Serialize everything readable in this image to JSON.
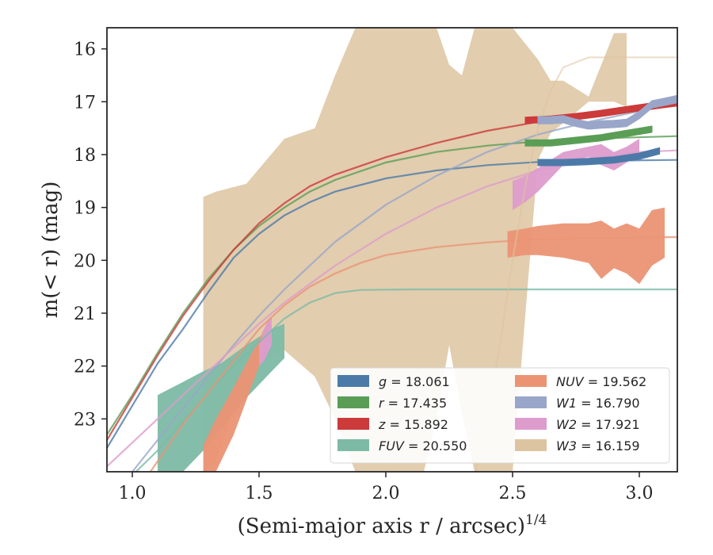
{
  "chart_data": {
    "type": "line",
    "xlabel": "(Semi-major axis r / arcsec)^{1/4}",
    "ylabel": "m(< r) (mag)",
    "xlim": [
      0.9,
      3.15
    ],
    "ylim": [
      24.0,
      15.6
    ],
    "y_inverted": true,
    "grid": false,
    "legend_position": "lower-right",
    "x_ticks": [
      "1.0",
      "1.5",
      "2.0",
      "2.5",
      "3.0"
    ],
    "y_ticks": [
      "16",
      "17",
      "18",
      "19",
      "20",
      "21",
      "22",
      "23"
    ],
    "series": [
      {
        "name": "g = 18.061",
        "band": "g",
        "total_mag": "18.061",
        "color": "#4c7aa8",
        "profile_x": [
          2.6,
          2.7,
          2.8,
          2.9,
          3.0,
          3.08
        ],
        "profile_y": [
          18.15,
          18.15,
          18.13,
          18.1,
          18.03,
          17.93
        ],
        "profile_halfwidth": 0.06,
        "model_x": [
          0.9,
          1.0,
          1.1,
          1.2,
          1.3,
          1.4,
          1.5,
          1.6,
          1.7,
          1.8,
          2.0,
          2.2,
          2.4,
          2.6,
          2.8,
          3.15
        ],
        "model_y": [
          23.55,
          22.75,
          21.95,
          21.3,
          20.6,
          19.95,
          19.5,
          19.15,
          18.9,
          18.7,
          18.45,
          18.3,
          18.2,
          18.14,
          18.12,
          18.1
        ]
      },
      {
        "name": "r = 17.435",
        "band": "r",
        "total_mag": "17.435",
        "color": "#5a9e56",
        "profile_x": [
          2.55,
          2.65,
          2.75,
          2.85,
          2.95,
          3.05
        ],
        "profile_y": [
          17.78,
          17.78,
          17.73,
          17.68,
          17.6,
          17.52
        ],
        "profile_halfwidth": 0.06,
        "model_x": [
          0.9,
          1.0,
          1.1,
          1.2,
          1.3,
          1.4,
          1.5,
          1.6,
          1.7,
          1.8,
          2.0,
          2.2,
          2.4,
          2.6,
          2.8,
          3.15
        ],
        "model_y": [
          23.3,
          22.55,
          21.75,
          21.0,
          20.35,
          19.8,
          19.35,
          19.0,
          18.7,
          18.48,
          18.15,
          17.95,
          17.83,
          17.75,
          17.7,
          17.65
        ]
      },
      {
        "name": "z = 15.892",
        "band": "z",
        "total_mag": "15.892",
        "color": "#cc3a3a",
        "profile_x": [
          2.55,
          2.65,
          2.75,
          2.85,
          2.95,
          3.05,
          3.15
        ],
        "profile_y": [
          17.35,
          17.33,
          17.28,
          17.22,
          17.15,
          17.08,
          17.02
        ],
        "profile_halfwidth": 0.06,
        "model_x": [
          0.9,
          1.0,
          1.1,
          1.2,
          1.3,
          1.4,
          1.5,
          1.6,
          1.7,
          1.8,
          2.0,
          2.2,
          2.4,
          2.6,
          2.8,
          3.15
        ],
        "model_y": [
          23.4,
          22.6,
          21.8,
          21.05,
          20.4,
          19.8,
          19.3,
          18.92,
          18.6,
          18.38,
          18.05,
          17.78,
          17.55,
          17.38,
          17.25,
          17.05
        ]
      },
      {
        "name": "FUV = 20.550",
        "band": "FUV",
        "total_mag": "20.550",
        "color": "#7dbaa6",
        "band_x": [
          1.1,
          1.2,
          1.28,
          1.35,
          1.45,
          1.55,
          1.6
        ],
        "band_upper": [
          22.55,
          22.3,
          22.1,
          21.95,
          21.6,
          21.3,
          21.2
        ],
        "band_lower": [
          24.0,
          24.0,
          23.6,
          23.2,
          22.6,
          22.1,
          21.85
        ],
        "model_x": [
          0.95,
          1.1,
          1.2,
          1.3,
          1.4,
          1.5,
          1.6,
          1.7,
          1.8,
          1.9,
          2.1,
          3.15
        ],
        "model_y": [
          24.3,
          23.6,
          23.05,
          22.5,
          22.0,
          21.55,
          21.1,
          20.8,
          20.62,
          20.56,
          20.55,
          20.55
        ]
      },
      {
        "name": "NUV = 19.562",
        "band": "NUV",
        "total_mag": "19.562",
        "color": "#eb9474",
        "band_x": [
          1.28,
          1.33,
          1.4,
          1.5,
          1.54
        ],
        "band_upper": [
          23.5,
          23.0,
          22.4,
          21.5,
          21.1
        ],
        "band_lower": [
          24.0,
          24.0,
          23.3,
          22.0,
          21.3
        ],
        "band2_x": [
          2.48,
          2.55,
          2.6,
          2.7,
          2.8,
          2.85,
          2.9,
          2.95,
          3.0,
          3.05,
          3.1
        ],
        "band2_upper": [
          19.45,
          19.4,
          19.35,
          19.3,
          19.3,
          19.25,
          19.4,
          19.3,
          19.4,
          19.05,
          19.0
        ],
        "band2_lower": [
          19.95,
          19.9,
          19.9,
          19.95,
          20.05,
          20.35,
          20.15,
          20.25,
          20.45,
          20.1,
          19.95
        ],
        "model_x": [
          1.0,
          1.1,
          1.2,
          1.3,
          1.4,
          1.5,
          1.6,
          1.7,
          1.8,
          1.9,
          2.0,
          2.2,
          2.4,
          2.6,
          2.8,
          3.15
        ],
        "model_y": [
          24.5,
          23.8,
          23.1,
          22.5,
          21.9,
          21.3,
          20.85,
          20.5,
          20.25,
          20.05,
          19.9,
          19.75,
          19.66,
          19.6,
          19.58,
          19.56
        ]
      },
      {
        "name": "W1 = 16.790",
        "band": "W1",
        "total_mag": "16.790",
        "color": "#99a6c9",
        "profile_x": [
          2.6,
          2.65,
          2.7,
          2.75,
          2.8,
          2.85,
          2.9,
          2.95,
          3.0,
          3.05,
          3.1,
          3.15
        ],
        "profile_y": [
          17.35,
          17.35,
          17.33,
          17.4,
          17.45,
          17.43,
          17.42,
          17.4,
          17.25,
          17.05,
          17.0,
          16.95
        ],
        "profile_halfwidth": 0.07,
        "model_x": [
          1.0,
          1.1,
          1.2,
          1.3,
          1.4,
          1.5,
          1.6,
          1.7,
          1.8,
          1.9,
          2.0,
          2.2,
          2.4,
          2.6,
          2.8,
          3.0,
          3.15
        ],
        "model_y": [
          24.0,
          23.4,
          22.8,
          22.2,
          21.6,
          21.05,
          20.55,
          20.1,
          19.65,
          19.3,
          18.95,
          18.4,
          17.95,
          17.62,
          17.38,
          17.18,
          17.05
        ]
      },
      {
        "name": "W2 = 17.921",
        "band": "W2",
        "total_mag": "17.921",
        "color": "#dd9ccc",
        "band_x": [
          1.5,
          1.52,
          1.54,
          1.55
        ],
        "band_upper": [
          21.6,
          21.3,
          21.1,
          21.1
        ],
        "band_lower": [
          22.0,
          21.9,
          21.7,
          21.6
        ],
        "band2_x": [
          2.5,
          2.55,
          2.6,
          2.65,
          2.7,
          2.75,
          2.8,
          2.85,
          2.9,
          2.95,
          3.0
        ],
        "band2_upper": [
          18.5,
          18.4,
          18.25,
          18.1,
          17.95,
          17.9,
          17.85,
          17.8,
          17.95,
          17.85,
          17.7
        ],
        "band2_lower": [
          19.05,
          18.9,
          18.7,
          18.45,
          18.2,
          18.1,
          18.05,
          18.2,
          18.3,
          18.15,
          18.0
        ],
        "model_x": [
          0.9,
          1.0,
          1.1,
          1.2,
          1.3,
          1.4,
          1.5,
          1.6,
          1.7,
          1.8,
          1.9,
          2.0,
          2.2,
          2.4,
          2.6,
          2.8,
          3.0,
          3.15
        ],
        "model_y": [
          23.9,
          23.45,
          23.0,
          22.55,
          22.1,
          21.65,
          21.2,
          20.8,
          20.45,
          20.1,
          19.8,
          19.5,
          19.0,
          18.6,
          18.3,
          18.08,
          17.95,
          17.92
        ]
      },
      {
        "name": "W3 = 16.159",
        "band": "W3",
        "total_mag": "16.159",
        "color": "#ddc4a0",
        "band_x": [
          1.28,
          1.33,
          1.45,
          1.6,
          1.72,
          1.8,
          1.88,
          1.95,
          2.05,
          2.1,
          2.15
        ],
        "band_upper": [
          18.8,
          18.7,
          18.55,
          17.7,
          17.5,
          16.5,
          15.6,
          15.6,
          15.6,
          15.6,
          15.6
        ],
        "band_lower": [
          24.0,
          23.8,
          22.1,
          21.7,
          22.2,
          23.0,
          24.0,
          24.0,
          24.0,
          24.0,
          24.0
        ],
        "band2_x": [
          2.15,
          2.2,
          2.25,
          2.3,
          2.35,
          2.4,
          2.45,
          2.5
        ],
        "band2_upper": [
          15.6,
          15.6,
          16.3,
          16.5,
          15.6,
          15.6,
          15.6,
          15.6
        ],
        "band2_lower": [
          24.0,
          23.0,
          21.6,
          22.9,
          24.0,
          24.0,
          24.0,
          24.0
        ],
        "band3_x": [
          2.5,
          2.6,
          2.65,
          2.7,
          2.8,
          2.9,
          2.95
        ],
        "band3_upper": [
          15.6,
          16.2,
          16.6,
          16.6,
          16.9,
          15.7,
          15.7
        ],
        "band3_lower": [
          24.0,
          18.1,
          17.6,
          17.4,
          17.0,
          17.0,
          17.1
        ],
        "model_x": [
          2.35,
          2.4,
          2.45,
          2.5,
          2.55,
          2.6,
          2.65,
          2.7,
          2.8,
          3.15
        ],
        "model_y": [
          24.1,
          23.0,
          21.6,
          20.0,
          18.6,
          17.5,
          16.8,
          16.35,
          16.16,
          16.16
        ]
      }
    ]
  }
}
